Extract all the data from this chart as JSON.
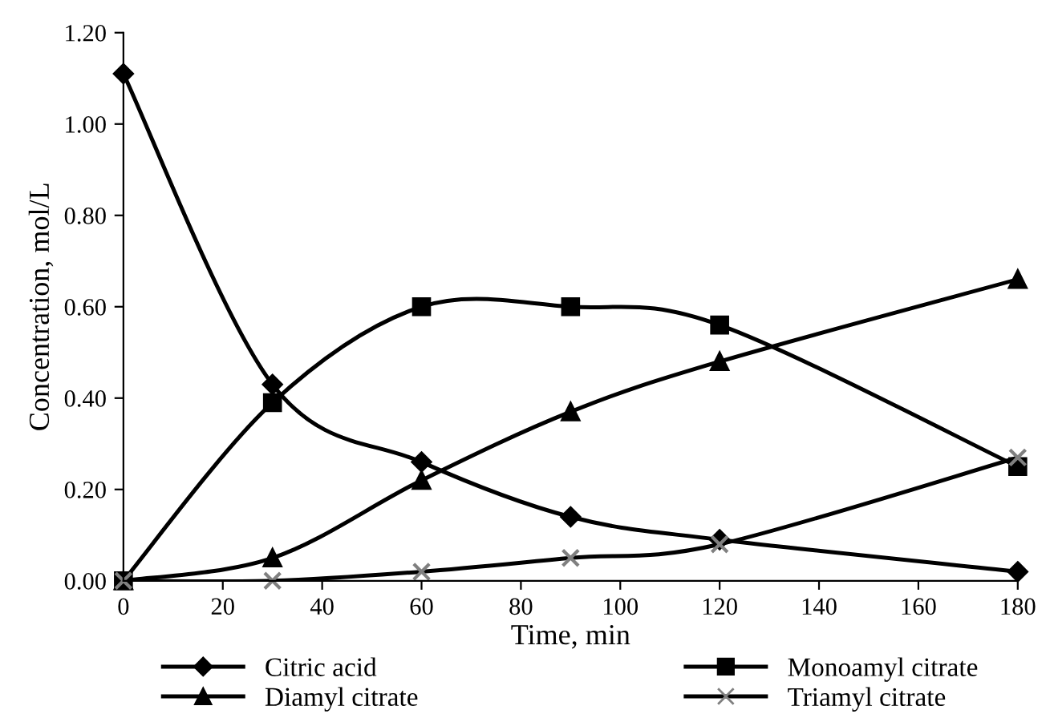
{
  "chart_data": {
    "type": "line",
    "xlabel": "Time, min",
    "ylabel": "Concentration, mol/L",
    "x": [
      0,
      30,
      60,
      90,
      120,
      180
    ],
    "series": [
      {
        "name": "Citric acid",
        "color": "#000000",
        "marker": "diamond",
        "values": [
          1.11,
          0.43,
          0.26,
          0.14,
          0.09,
          0.02
        ]
      },
      {
        "name": "Monoamyl citrate",
        "color": "#000000",
        "marker": "square",
        "values": [
          0,
          0.39,
          0.6,
          0.6,
          0.56,
          0.25
        ]
      },
      {
        "name": "Diamyl citrate",
        "color": "#000000",
        "marker": "triangle",
        "values": [
          0,
          0.05,
          0.22,
          0.37,
          0.48,
          0.66
        ]
      },
      {
        "name": "Triamyl citrate",
        "color": "#808080",
        "marker": "cross",
        "values": [
          0,
          0,
          0.02,
          0.05,
          0.08,
          0.27
        ]
      }
    ],
    "xlim": [
      0,
      180
    ],
    "xticks": [
      0,
      20,
      40,
      60,
      80,
      100,
      120,
      140,
      160,
      180
    ],
    "ylim": [
      0,
      1.2
    ],
    "yticks": [
      {
        "value": 0,
        "label": "0.00"
      },
      {
        "value": 0.2,
        "label": "0.20"
      },
      {
        "value": 0.4,
        "label": "0.40"
      },
      {
        "value": 0.6,
        "label": "0.60"
      },
      {
        "value": 0.8,
        "label": "0.80"
      },
      {
        "value": 1.0,
        "label": "1.00"
      },
      {
        "value": 1.2,
        "label": "1.20"
      }
    ],
    "grid": false,
    "legend": "bottom",
    "line_style": "solid"
  }
}
